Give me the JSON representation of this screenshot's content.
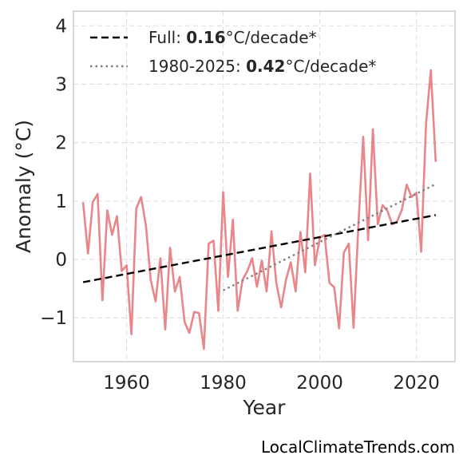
{
  "chart_data": {
    "type": "line",
    "xlabel": "Year",
    "ylabel": "Anomaly (°C)",
    "xlim": [
      1949,
      2028
    ],
    "ylim": [
      -1.75,
      4.25
    ],
    "xticks": [
      1960,
      1980,
      2000,
      2020
    ],
    "yticks": [
      4,
      3,
      2,
      1,
      0,
      -1
    ],
    "ytick_labels": [
      "4",
      "3",
      "2",
      "1",
      "0",
      "−1"
    ],
    "grid": true,
    "legend_position": "top-left",
    "series": [
      {
        "color": "#e8868a",
        "style": "solid",
        "x": [
          1951,
          1952,
          1953,
          1954,
          1955,
          1956,
          1957,
          1958,
          1959,
          1960,
          1961,
          1962,
          1963,
          1964,
          1965,
          1966,
          1967,
          1968,
          1969,
          1970,
          1971,
          1972,
          1973,
          1974,
          1975,
          1976,
          1977,
          1978,
          1979,
          1980,
          1981,
          1982,
          1983,
          1984,
          1985,
          1986,
          1987,
          1988,
          1989,
          1990,
          1991,
          1992,
          1993,
          1994,
          1995,
          1996,
          1997,
          1998,
          1999,
          2000,
          2001,
          2002,
          2003,
          2004,
          2005,
          2006,
          2007,
          2008,
          2009,
          2010,
          2011,
          2012,
          2013,
          2014,
          2015,
          2016,
          2017,
          2018,
          2019,
          2020,
          2021,
          2022,
          2023,
          2024
        ],
        "values": [
          0.98,
          0.1,
          0.98,
          1.12,
          -0.7,
          0.84,
          0.42,
          0.74,
          -0.2,
          -0.1,
          -1.28,
          0.87,
          1.07,
          0.58,
          -0.35,
          -0.72,
          0.02,
          -1.2,
          0.2,
          -0.55,
          -0.3,
          -1.07,
          -1.26,
          -0.9,
          -0.92,
          -1.53,
          0.27,
          0.32,
          -0.88,
          1.15,
          -0.3,
          0.68,
          -0.88,
          -0.35,
          -0.2,
          0.02,
          -0.47,
          -0.02,
          -0.55,
          0.48,
          -0.4,
          -0.82,
          -0.35,
          -0.05,
          -0.55,
          0.47,
          -0.22,
          1.47,
          -0.1,
          0.37,
          0.42,
          -0.4,
          -0.48,
          -1.18,
          0.12,
          0.27,
          -1.17,
          0.6,
          2.1,
          0.33,
          2.23,
          0.6,
          0.93,
          0.83,
          0.6,
          0.65,
          0.85,
          1.28,
          1.07,
          1.14,
          0.13,
          2.33,
          3.24,
          1.67
        ]
      },
      {
        "label_prefix": "Full: ",
        "label_value": "0.16",
        "label_suffix": "°C/decade*",
        "color": "#000000",
        "style": "dashed",
        "x": [
          1951,
          2024
        ],
        "values": [
          -0.39,
          0.76
        ]
      },
      {
        "label_prefix": "1980-2025: ",
        "label_value": "0.42",
        "label_suffix": "°C/decade*",
        "color": "#7f7f7f",
        "style": "dotted",
        "x": [
          1980,
          2024
        ],
        "values": [
          -0.53,
          1.29
        ]
      }
    ]
  },
  "source": "LocalClimateTrends.com"
}
